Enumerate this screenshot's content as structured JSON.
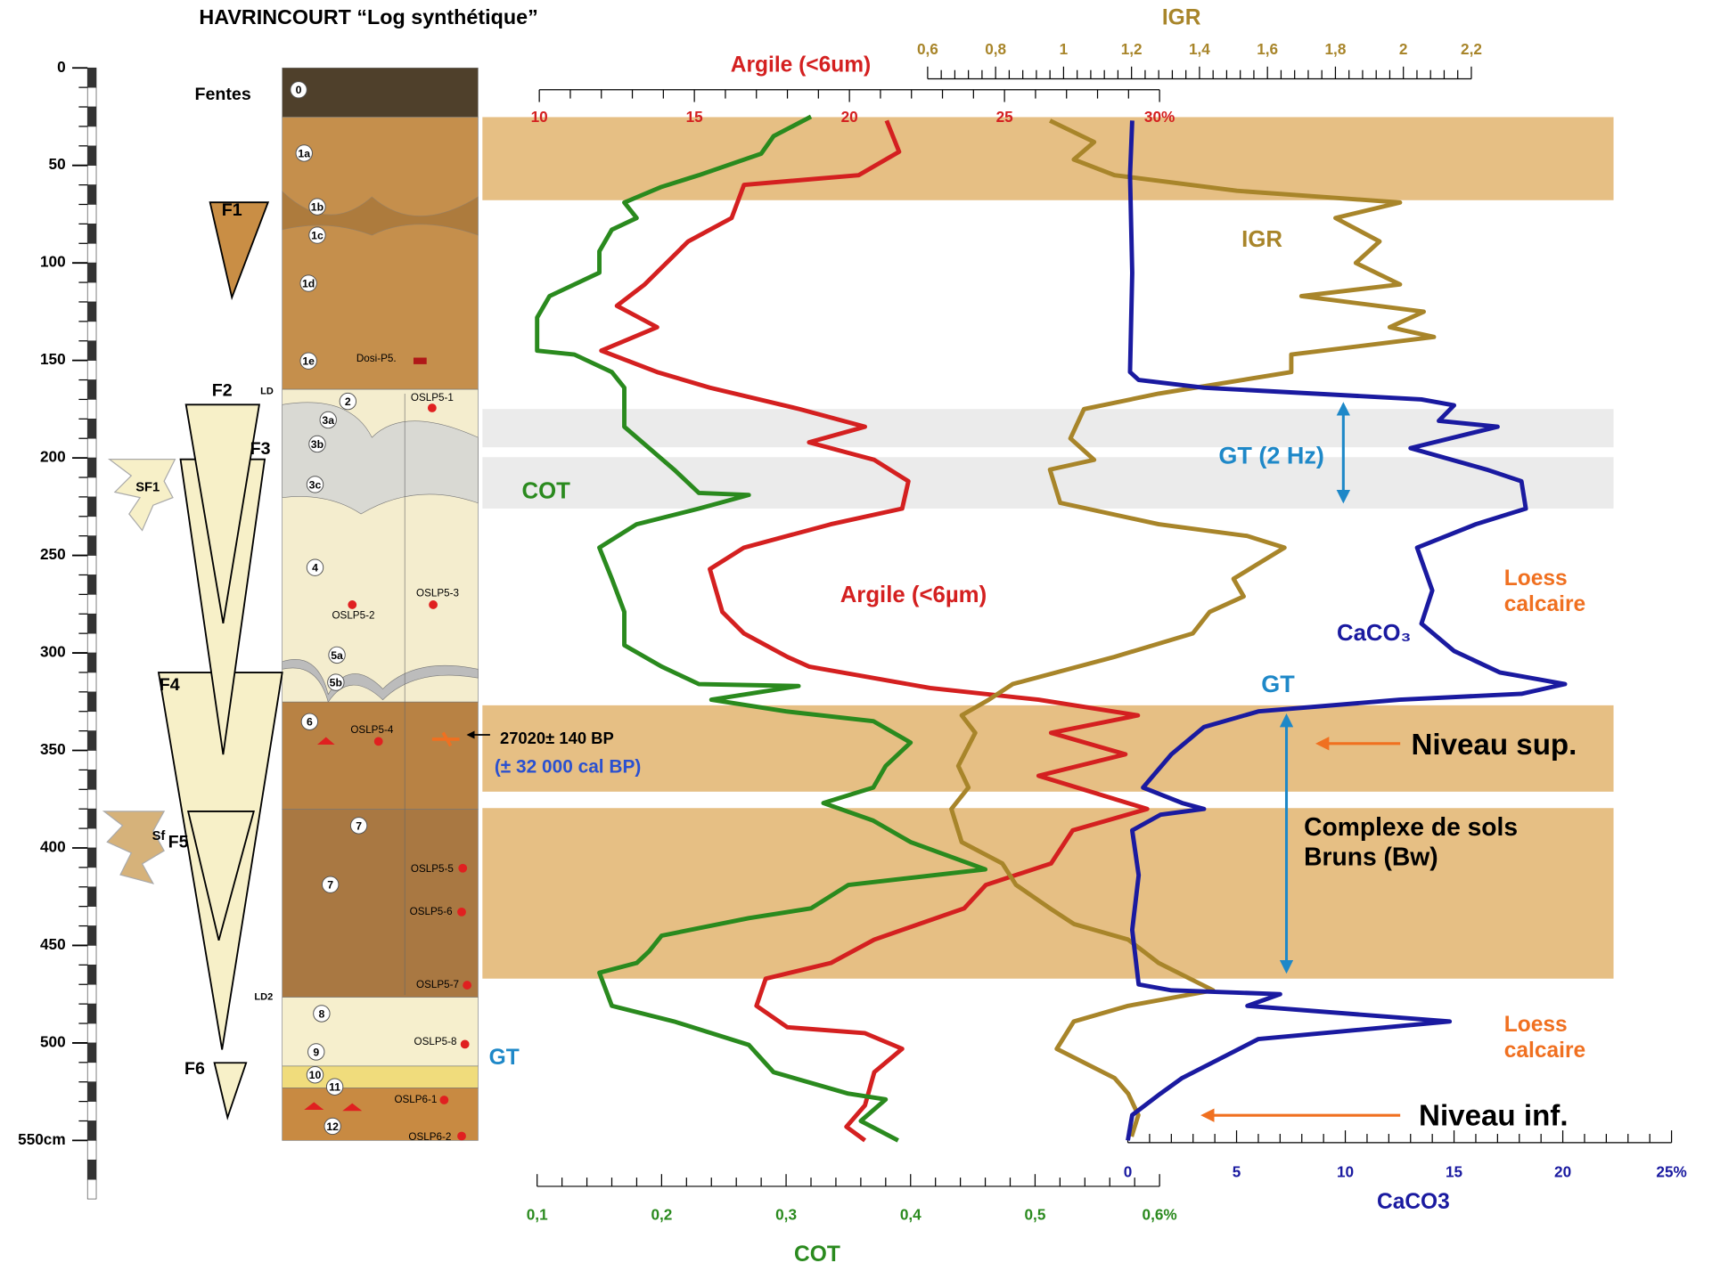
{
  "chart_data": {
    "type": "line",
    "title": "HAVRINCOURT “Log synthétique”",
    "ylim": [
      0,
      550
    ],
    "yticks": [
      0,
      50,
      100,
      150,
      200,
      250,
      300,
      350,
      400,
      450,
      500,
      {
        "value": 550,
        "label": "550cm"
      }
    ],
    "series": [
      {
        "name": "Argile (<6um)",
        "color": "#d42020",
        "xlim": [
          10,
          30
        ],
        "xticks": [
          10,
          15,
          20,
          25,
          {
            "value": 30,
            "label": "30%"
          }
        ],
        "depth": [
          27,
          43,
          55,
          60,
          77,
          89,
          111,
          122,
          133,
          145,
          156,
          164,
          175,
          184,
          192,
          201,
          212,
          226,
          234,
          246,
          257,
          279,
          290,
          302,
          307,
          318,
          324,
          332,
          341,
          352,
          363,
          380,
          391,
          408,
          419,
          431,
          447,
          459,
          467,
          481,
          492,
          495,
          503,
          515,
          532,
          543,
          550
        ],
        "values": [
          21.2,
          21.6,
          20.3,
          16.6,
          16.2,
          14.8,
          13.4,
          12.5,
          13.8,
          12,
          13.8,
          15.5,
          18.4,
          20.5,
          18.7,
          20.8,
          21.9,
          21.7,
          19.4,
          16.6,
          15.5,
          15.9,
          16.6,
          18,
          18.7,
          22.6,
          26.1,
          29.3,
          26.5,
          28.9,
          26.1,
          29.6,
          27.2,
          26.5,
          24.4,
          23.7,
          20.8,
          19.4,
          17.3,
          17,
          18,
          20.5,
          21.7,
          20.8,
          20.5,
          19.9,
          20.5
        ]
      },
      {
        "name": "IGR",
        "color": "#a8852a",
        "xlim": [
          0.6,
          2.2
        ],
        "xticks": [
          {
            "value": 0.6,
            "label": "0,6"
          },
          {
            "value": 0.8,
            "label": "0,8"
          },
          1,
          {
            "value": 1.2,
            "label": "1,2"
          },
          {
            "value": 1.4,
            "label": "1,4"
          },
          {
            "value": 1.6,
            "label": "1,6"
          },
          {
            "value": 1.8,
            "label": "1,8"
          },
          2,
          {
            "value": 2.2,
            "label": "2,2"
          }
        ],
        "depth": [
          27,
          38,
          47,
          55,
          63,
          69,
          77,
          89,
          100,
          111,
          117,
          125,
          133,
          138,
          147,
          156,
          167,
          175,
          190,
          201,
          206,
          223,
          234,
          240,
          246,
          262,
          271,
          279,
          290,
          302,
          316,
          324,
          332,
          341,
          358,
          369,
          380,
          397,
          408,
          419,
          431,
          439,
          447,
          459,
          473,
          481,
          489,
          503,
          518,
          526,
          537,
          548
        ],
        "values": [
          0.96,
          1.09,
          1.03,
          1.15,
          1.51,
          1.99,
          1.8,
          1.93,
          1.86,
          1.99,
          1.7,
          2.06,
          1.96,
          2.09,
          1.67,
          1.67,
          1.28,
          1.06,
          1.02,
          1.09,
          0.96,
          0.99,
          1.28,
          1.54,
          1.65,
          1.5,
          1.53,
          1.43,
          1.38,
          1.15,
          0.85,
          0.78,
          0.7,
          0.74,
          0.69,
          0.72,
          0.67,
          0.7,
          0.82,
          0.86,
          0.96,
          1.03,
          1.19,
          1.28,
          1.44,
          1.19,
          1.03,
          0.98,
          1.15,
          1.19,
          1.22,
          1.2
        ]
      },
      {
        "name": "COT",
        "color": "#2a8a1e",
        "xlim": [
          0.1,
          0.6
        ],
        "xticks": [
          {
            "value": 0.1,
            "label": "0,1"
          },
          {
            "value": 0.2,
            "label": "0,2"
          },
          {
            "value": 0.3,
            "label": "0,3"
          },
          {
            "value": 0.4,
            "label": "0,4"
          },
          {
            "value": 0.5,
            "label": "0,5"
          },
          {
            "value": 0.6,
            "label": "0,6%"
          }
        ],
        "depth": [
          25,
          35,
          44,
          55,
          61,
          69,
          77,
          83,
          94,
          105,
          117,
          128,
          145,
          147,
          156,
          164,
          184,
          195,
          206,
          218,
          219,
          226,
          234,
          246,
          262,
          279,
          296,
          307,
          316,
          317,
          324,
          330,
          335,
          346,
          358,
          369,
          377,
          386,
          397,
          411,
          419,
          431,
          436,
          445,
          453,
          459,
          464,
          481,
          489,
          501,
          515,
          526,
          529,
          540,
          550
        ],
        "values": [
          0.32,
          0.29,
          0.28,
          0.23,
          0.2,
          0.17,
          0.18,
          0.16,
          0.15,
          0.15,
          0.11,
          0.1,
          0.1,
          0.13,
          0.16,
          0.17,
          0.17,
          0.19,
          0.21,
          0.23,
          0.27,
          0.23,
          0.18,
          0.15,
          0.16,
          0.17,
          0.17,
          0.2,
          0.23,
          0.31,
          0.24,
          0.3,
          0.37,
          0.4,
          0.38,
          0.37,
          0.33,
          0.37,
          0.4,
          0.46,
          0.35,
          0.32,
          0.27,
          0.2,
          0.19,
          0.18,
          0.15,
          0.16,
          0.21,
          0.27,
          0.29,
          0.35,
          0.38,
          0.36,
          0.39
        ]
      },
      {
        "name": "CaCO3",
        "color": "#1a1aa0",
        "xlim": [
          0,
          25
        ],
        "xticks": [
          0,
          5,
          10,
          15,
          20,
          {
            "value": 25,
            "label": "25%"
          }
        ],
        "depth": [
          27,
          55,
          105,
          156,
          160,
          164,
          170,
          173,
          181,
          184,
          195,
          206,
          212,
          226,
          234,
          246,
          268,
          285,
          299,
          310,
          316,
          321,
          324,
          330,
          338,
          352,
          369,
          377,
          380,
          383,
          391,
          414,
          442,
          470,
          473,
          475,
          481,
          489,
          498,
          518,
          526,
          537,
          550
        ],
        "values": [
          0.2,
          0.1,
          0.2,
          0.1,
          0.5,
          3.5,
          13.5,
          15,
          14.3,
          17,
          13,
          16.5,
          18.1,
          18.3,
          16,
          13.3,
          14,
          13.5,
          15,
          17.1,
          20.1,
          18.1,
          12.5,
          6,
          3.5,
          2,
          0.7,
          2.5,
          3.5,
          1.5,
          0.2,
          0.5,
          0.2,
          0.5,
          2,
          7,
          5.5,
          14.8,
          6,
          2.5,
          1.5,
          0.2,
          0
        ]
      }
    ]
  },
  "log": {
    "fentes_label": "Fentes",
    "wedges": [
      "F1",
      "F2",
      "F3",
      "F4",
      "F5",
      "F6",
      "SF1",
      "Sf"
    ],
    "limits": [
      "LD",
      "LD2"
    ],
    "units": [
      "0",
      "1a",
      "1b",
      "1c",
      "1d",
      "1e",
      "2",
      "3a",
      "3b",
      "3c",
      "4",
      "5a",
      "5b",
      "6",
      "7",
      "7",
      "8",
      "9",
      "10",
      "11",
      "12"
    ],
    "samples": [
      "OSLP5-1",
      "OSLP5-2",
      "OSLP5-3",
      "OSLP5-4",
      "OSLP5-5",
      "OSLP5-6",
      "OSLP5-7",
      "OSLP5-8",
      "OSLP6-1",
      "OSLP6-2"
    ],
    "dosimeter": "Dosi-P5."
  },
  "annotations": {
    "cot": "COT",
    "argile": "Argile (<6µm)",
    "igr": "IGR",
    "caco3": "CaCO₃",
    "gt_2hz": "GT (2 Hz)",
    "gt_upper": "GT",
    "gt_lower": "GT",
    "loess_upper": [
      "Loess",
      "calcaire"
    ],
    "loess_lower": [
      "Loess",
      "calcaire"
    ],
    "niveau_sup": "Niveau sup.",
    "niveau_inf": "Niveau inf.",
    "complexe": [
      "Complexe de sols",
      "Bruns (Bw)"
    ],
    "date": "27020± 140 BP",
    "date_cal": "(± 32 000 cal BP)"
  }
}
